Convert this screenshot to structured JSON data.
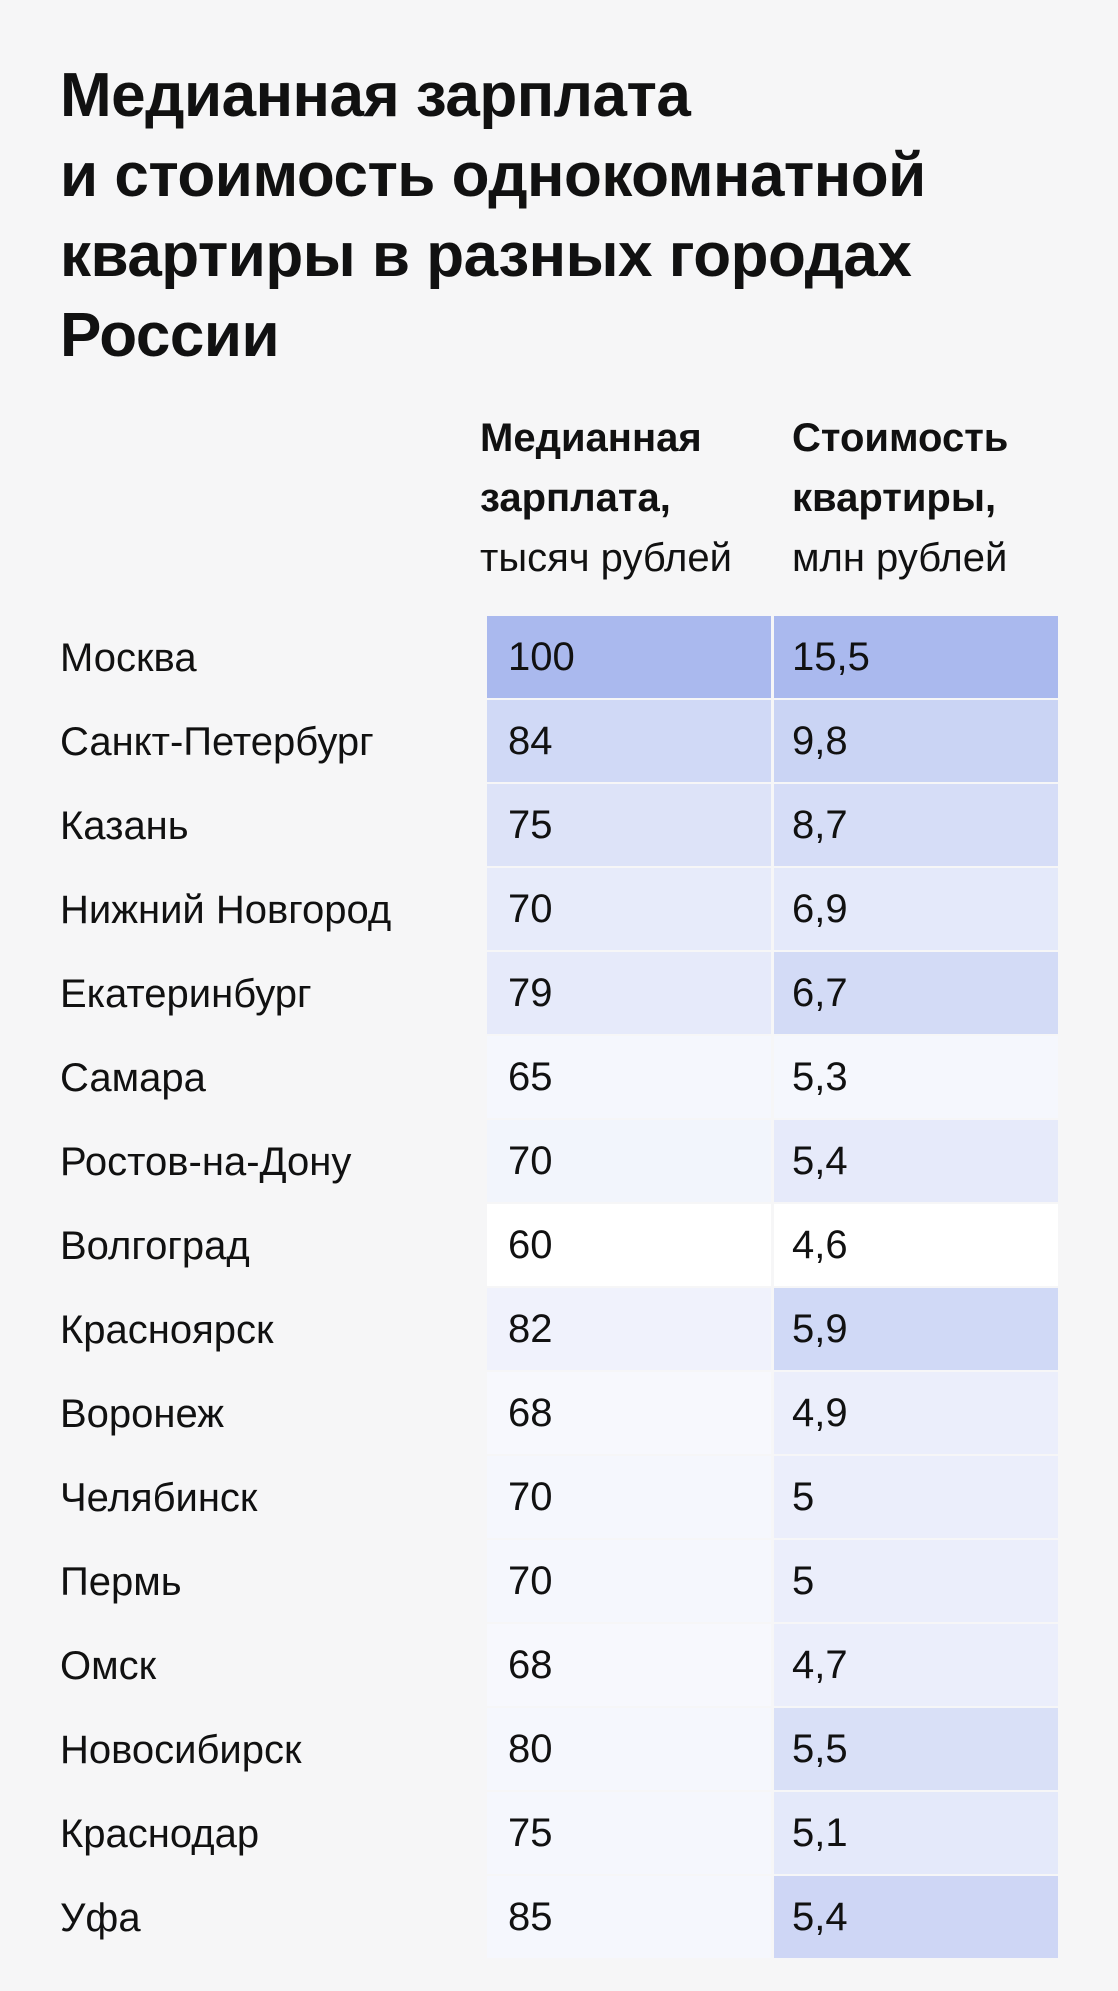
{
  "title": {
    "lines": [
      "Медианная зарплата",
      "и стоимость однокомнатной",
      "квартиры в разных городах",
      "России"
    ]
  },
  "columns": {
    "salary": {
      "title_line1": "Медианная",
      "title_line2": "зарплата,",
      "unit": "тысяч рублей"
    },
    "price": {
      "title_line1": "Стоимость",
      "title_line2": "квартиры,",
      "unit": "млн рублей"
    }
  },
  "colors": {
    "page_background": "#f6f6f7",
    "text": "#111111",
    "scale_low": "#ffffff",
    "scale_high": "#aab9ee"
  },
  "chart_data": {
    "type": "table",
    "title": "Медианная зарплата и стоимость однокомнатной квартиры в разных городах России",
    "columns": [
      "Медианная зарплата, тысяч рублей",
      "Стоимость квартиры, млн рублей"
    ],
    "color_scale": {
      "salary": {
        "min": 60,
        "max": 100
      },
      "price": {
        "min": 4.6,
        "max": 15.5
      }
    },
    "rows": [
      {
        "city": "Москва",
        "salary": 100,
        "salary_text": "100",
        "price": 15.5,
        "price_text": "15,5",
        "salary_fill": 1.0,
        "price_fill": 1.0
      },
      {
        "city": "Санкт-Петербург",
        "salary": 84,
        "salary_text": "84",
        "price": 9.8,
        "price_text": "9,8",
        "salary_fill": 0.55,
        "price_fill": 0.62
      },
      {
        "city": "Казань",
        "salary": 75,
        "salary_text": "75",
        "price": 8.7,
        "price_text": "8,7",
        "salary_fill": 0.4,
        "price_fill": 0.48
      },
      {
        "city": "Нижний Новгород",
        "salary": 70,
        "salary_text": "70",
        "price": 6.9,
        "price_text": "6,9",
        "salary_fill": 0.28,
        "price_fill": 0.32
      },
      {
        "city": "Екатеринбург",
        "salary": 79,
        "salary_text": "79",
        "price": 6.7,
        "price_text": "6,7",
        "salary_fill": 0.3,
        "price_fill": 0.52
      },
      {
        "city": "Самара",
        "salary": 65,
        "salary_text": "65",
        "price": 5.3,
        "price_text": "5,3",
        "salary_fill": 0.12,
        "price_fill": 0.12
      },
      {
        "city": "Ростов-на-Дону",
        "salary": 70,
        "salary_text": "70",
        "price": 5.4,
        "price_text": "5,4",
        "salary_fill": 0.15,
        "price_fill": 0.3
      },
      {
        "city": "Волгоград",
        "salary": 60,
        "salary_text": "60",
        "price": 4.6,
        "price_text": "4,6",
        "salary_fill": 0.0,
        "price_fill": 0.0
      },
      {
        "city": "Красноярск",
        "salary": 82,
        "salary_text": "82",
        "price": 5.9,
        "price_text": "5,9",
        "salary_fill": 0.18,
        "price_fill": 0.55
      },
      {
        "city": "Воронеж",
        "salary": 68,
        "salary_text": "68",
        "price": 4.9,
        "price_text": "4,9",
        "salary_fill": 0.1,
        "price_fill": 0.24
      },
      {
        "city": "Челябинск",
        "salary": 70,
        "salary_text": "70",
        "price": 5,
        "price_text": "5",
        "salary_fill": 0.12,
        "price_fill": 0.24
      },
      {
        "city": "Пермь",
        "salary": 70,
        "salary_text": "70",
        "price": 5,
        "price_text": "5",
        "salary_fill": 0.12,
        "price_fill": 0.24
      },
      {
        "city": "Омск",
        "salary": 68,
        "salary_text": "68",
        "price": 4.7,
        "price_text": "4,7",
        "salary_fill": 0.1,
        "price_fill": 0.24
      },
      {
        "city": "Новосибирск",
        "salary": 80,
        "salary_text": "80",
        "price": 5.5,
        "price_text": "5,5",
        "salary_fill": 0.12,
        "price_fill": 0.45
      },
      {
        "city": "Краснодар",
        "salary": 75,
        "salary_text": "75",
        "price": 5.1,
        "price_text": "5,1",
        "salary_fill": 0.12,
        "price_fill": 0.32
      },
      {
        "city": "Уфа",
        "salary": 85,
        "salary_text": "85",
        "price": 5.4,
        "price_text": "5,4",
        "salary_fill": 0.12,
        "price_fill": 0.58
      }
    ]
  }
}
